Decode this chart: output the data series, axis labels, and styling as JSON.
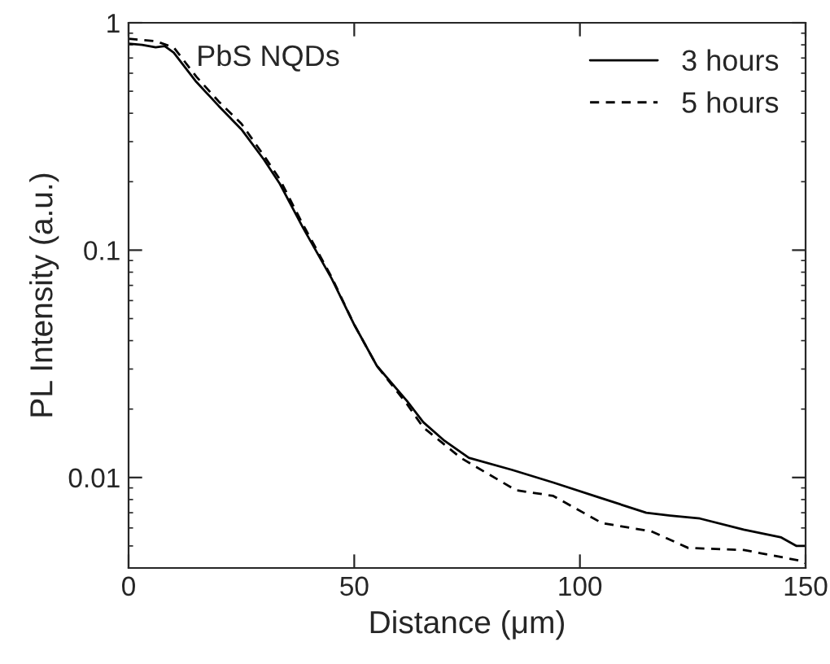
{
  "chart_data": {
    "type": "line",
    "xlabel": "Distance (μm)",
    "ylabel": "PL Intensity (a.u.)",
    "annotations": [
      "PbS NQDs"
    ],
    "xlim": [
      0,
      150
    ],
    "xticks": [
      0,
      50,
      100,
      150
    ],
    "ylim": [
      0.004,
      1
    ],
    "yticks": [
      0.01,
      0.1,
      1
    ],
    "log": true,
    "grid": false,
    "legend": "top right",
    "series": [
      {
        "name": "3 hours",
        "color": "#000000",
        "line_style": "solid",
        "x": [
          0,
          3,
          6,
          8,
          10,
          15,
          20,
          25,
          30,
          33.5,
          38.6,
          45,
          50,
          55,
          61.7,
          65.3,
          70,
          75.4,
          85,
          94.1,
          104,
          114.7,
          120,
          126.6,
          136.3,
          144.6,
          148,
          150
        ],
        "values": [
          0.81,
          0.8,
          0.78,
          0.79,
          0.74,
          0.55,
          0.43,
          0.34,
          0.25,
          0.196,
          0.126,
          0.075,
          0.047,
          0.031,
          0.0217,
          0.0175,
          0.0145,
          0.0122,
          0.0108,
          0.0095,
          0.0082,
          0.007,
          0.0068,
          0.0066,
          0.0059,
          0.00545,
          0.005,
          0.005
        ]
      },
      {
        "name": "5 hours",
        "color": "#000000",
        "line_style": "dashed",
        "x": [
          0,
          3,
          6,
          10,
          15,
          20,
          25,
          30,
          33.5,
          38.6,
          45,
          50,
          55,
          61.7,
          65.3,
          73.6,
          85.8,
          94.1,
          104.9,
          115.8,
          124,
          136.3,
          149,
          150
        ],
        "values": [
          0.85,
          0.84,
          0.83,
          0.78,
          0.58,
          0.45,
          0.36,
          0.26,
          0.205,
          0.13,
          0.076,
          0.047,
          0.031,
          0.021,
          0.0166,
          0.0122,
          0.0088,
          0.0083,
          0.0063,
          0.0058,
          0.0049,
          0.0048,
          0.0043,
          0.0042
        ]
      }
    ]
  }
}
